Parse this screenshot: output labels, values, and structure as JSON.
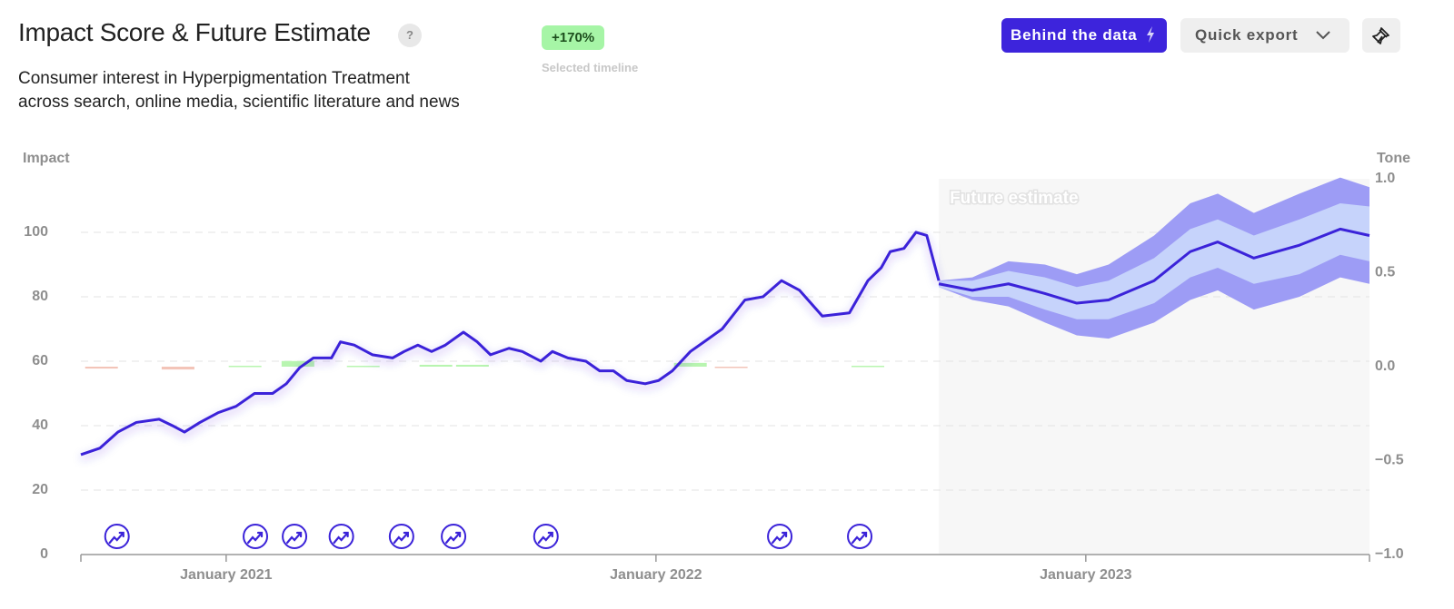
{
  "header": {
    "title": "Impact Score & Future Estimate",
    "help": "?",
    "badge": "+170%",
    "badge_caption": "Selected timeline",
    "subtitle": [
      "Consumer interest in Hyperpigmentation Treatment",
      "across search, online media, scientific literature and news"
    ],
    "buttons": {
      "behind": "Behind the data",
      "export": "Quick export"
    }
  },
  "chart_data": {
    "type": "line",
    "y_label": "Impact",
    "y2_label": "Tone",
    "forecast_label": "Future estimate",
    "xlim": [
      2020.662,
      2023.66
    ],
    "xticks": [
      {
        "value": 2021,
        "label": "January 2021"
      },
      {
        "value": 2022,
        "label": "January 2022"
      },
      {
        "value": 2023,
        "label": "January 2023"
      }
    ],
    "ylim": [
      0,
      116.6
    ],
    "yticks": [
      0,
      20,
      40,
      60,
      80,
      100
    ],
    "y2lim": [
      -1,
      1
    ],
    "y2ticks": [
      {
        "value": 1,
        "label": "1.0"
      },
      {
        "value": 0.5,
        "label": "0.5"
      },
      {
        "value": 0,
        "label": "0.0"
      },
      {
        "value": -0.5,
        "label": "−0.5"
      },
      {
        "value": -1,
        "label": "−1.0"
      }
    ],
    "grid": true,
    "history": {
      "color": "#3b23d9",
      "x": [
        2020.662,
        2020.706,
        2020.748,
        2020.791,
        2020.844,
        2020.875,
        2020.903,
        2020.939,
        2020.981,
        2021.023,
        2021.066,
        2021.108,
        2021.14,
        2021.171,
        2021.203,
        2021.245,
        2021.266,
        2021.298,
        2021.34,
        2021.387,
        2021.414,
        2021.446,
        2021.478,
        2021.51,
        2021.552,
        2021.584,
        2021.615,
        2021.658,
        2021.689,
        2021.732,
        2021.759,
        2021.795,
        2021.837,
        2021.869,
        2021.901,
        2021.932,
        2021.975,
        2022.006,
        2022.038,
        2022.08,
        2022.112,
        2022.154,
        2022.207,
        2022.249,
        2022.292,
        2022.334,
        2022.387,
        2022.45,
        2022.493,
        2022.524,
        2022.545,
        2022.577,
        2022.605,
        2022.63,
        2022.658
      ],
      "values": [
        31,
        33,
        38,
        41,
        42,
        40,
        38,
        41,
        44,
        46,
        50,
        50,
        53,
        58,
        61,
        61,
        66,
        65,
        62,
        61,
        63,
        65,
        63,
        65,
        69,
        66,
        62,
        64,
        63,
        60,
        63,
        61,
        60,
        57,
        57,
        54,
        53,
        54,
        57,
        63,
        66,
        70,
        79,
        80,
        85,
        82,
        74,
        75,
        85,
        89,
        94,
        95,
        100,
        99,
        85
      ]
    },
    "forecast": {
      "color": "#3b23d9",
      "inner_color": "#c6d3fb",
      "outer_color": "#9d9cf5",
      "x": [
        2022.658,
        2022.736,
        2022.82,
        2022.905,
        2022.979,
        2023.053,
        2023.159,
        2023.243,
        2023.307,
        2023.391,
        2023.497,
        2023.592,
        2023.66
      ],
      "values": [
        84,
        82,
        84,
        81,
        78,
        79,
        85,
        94,
        97,
        92,
        96,
        101,
        99
      ],
      "inner_upper": [
        85,
        85,
        88,
        86,
        83,
        85,
        92,
        101,
        104,
        99,
        104,
        109,
        108
      ],
      "inner_lower": [
        83,
        80,
        80,
        76,
        73,
        73,
        78,
        86,
        89,
        84,
        87,
        93,
        91
      ],
      "outer_upper": [
        85,
        86,
        91,
        90,
        87,
        90,
        99,
        109,
        112,
        106,
        112,
        117,
        114
      ],
      "outer_lower": [
        83,
        79,
        77,
        72,
        68,
        67,
        72,
        79,
        82,
        76,
        80,
        86,
        84
      ]
    },
    "tone": {
      "positive_color": "#b8f5b0",
      "negative_color": "#f3c4b8",
      "x": [
        2020.71,
        2020.888,
        2021.044,
        2021.167,
        2021.319,
        2021.488,
        2021.573,
        2022.08,
        2022.175,
        2022.493
      ],
      "values": [
        -0.01,
        -0.015,
        0.005,
        0.03,
        0.005,
        0.01,
        0.01,
        0.02,
        -0.005,
        0.005
      ]
    },
    "events": {
      "x": [
        2020.746,
        2021.068,
        2021.159,
        2021.268,
        2021.408,
        2021.529,
        2021.744,
        2022.288,
        2022.474
      ]
    }
  }
}
